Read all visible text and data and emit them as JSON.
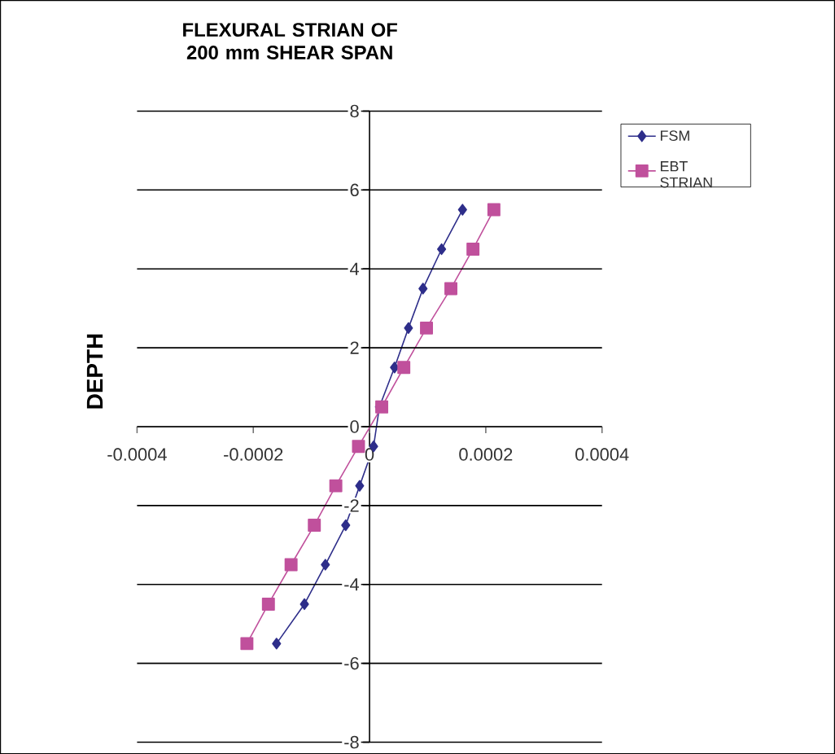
{
  "chart_data": {
    "type": "line",
    "title": "FLEXURAL STRIAN OF 200 mm SHEAR SPAN",
    "ylabel": "DEPTH",
    "xlim": [
      -0.0004,
      0.0004
    ],
    "xticks": [
      -0.0004,
      -0.0002,
      0,
      0.0002,
      0.0004
    ],
    "ylim": [
      -8,
      8
    ],
    "yticks": [
      -8,
      -6,
      -4,
      -2,
      0,
      2,
      4,
      6,
      8
    ],
    "grid": "y",
    "legend": "top right",
    "series": [
      {
        "name": "FSM",
        "color": "#2e2e8a",
        "marker": "diamond",
        "x": [
          0.00016,
          0.000124,
          9.2e-05,
          6.7e-05,
          4.3e-05,
          1.7e-05,
          7e-06,
          -1.7e-05,
          -4.1e-05,
          -7.6e-05,
          -0.000112,
          -0.00016
        ],
        "values": [
          5.5,
          4.5,
          3.5,
          2.5,
          1.5,
          0.5,
          -0.5,
          -1.5,
          -2.5,
          -3.5,
          -4.5,
          -5.5
        ]
      },
      {
        "name": "EBT STRIAN",
        "color": "#c0509c",
        "marker": "square",
        "x": [
          0.000214,
          0.000178,
          0.00014,
          9.8e-05,
          5.9e-05,
          2.1e-05,
          -1.9e-05,
          -5.8e-05,
          -9.5e-05,
          -0.000135,
          -0.000174,
          -0.000211
        ],
        "values": [
          5.5,
          4.5,
          3.5,
          2.5,
          1.5,
          0.5,
          -0.5,
          -1.5,
          -2.5,
          -3.5,
          -4.5,
          -5.5
        ]
      }
    ]
  }
}
